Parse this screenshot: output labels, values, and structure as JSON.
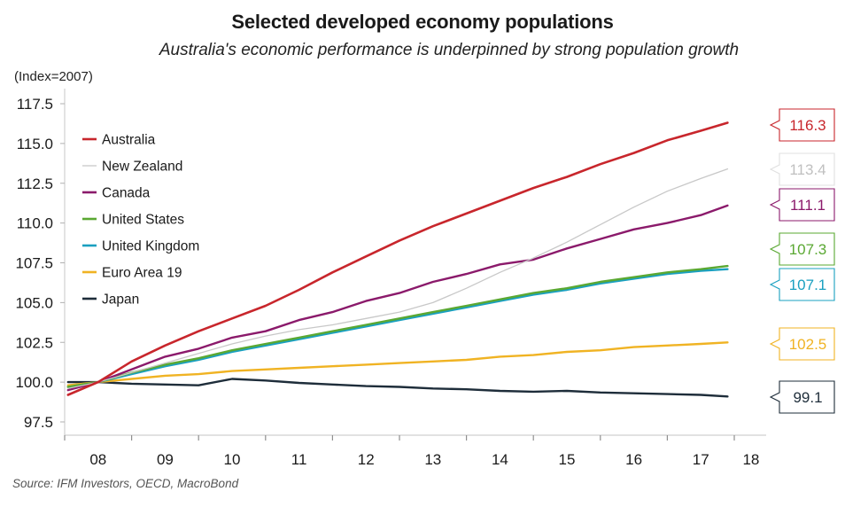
{
  "chart_data": {
    "type": "line",
    "title": "Selected developed economy populations",
    "subtitle": "Australia's economic performance is underpinned by strong population growth",
    "ylabel": "(Index=2007)",
    "xlabel": "",
    "source": "Source: IFM Investors, OECD, MacroBond",
    "ylim": [
      97.5,
      117.5
    ],
    "xlim": [
      2008.0,
      2018.45
    ],
    "yticks": [
      97.5,
      100.0,
      102.5,
      105.0,
      107.5,
      110.0,
      112.5,
      115.0,
      117.5
    ],
    "ytick_labels": [
      "97.5",
      "100.0",
      "102.5",
      "105.0",
      "107.5",
      "110.0",
      "112.5",
      "115.0",
      "117.5"
    ],
    "xtick_positions": [
      2008,
      2009,
      2010,
      2011,
      2012,
      2013,
      2014,
      2015,
      2016,
      2017,
      2018
    ],
    "xcategory_labels": [
      {
        "label": "08",
        "at": 2008.5
      },
      {
        "label": "09",
        "at": 2009.5
      },
      {
        "label": "10",
        "at": 2010.5
      },
      {
        "label": "11",
        "at": 2011.5
      },
      {
        "label": "12",
        "at": 2012.5
      },
      {
        "label": "13",
        "at": 2013.5
      },
      {
        "label": "14",
        "at": 2014.5
      },
      {
        "label": "15",
        "at": 2015.5
      },
      {
        "label": "16",
        "at": 2016.5
      },
      {
        "label": "17",
        "at": 2017.5
      },
      {
        "label": "18",
        "at": 2018.25
      }
    ],
    "grid": false,
    "legend_position": "top-left",
    "x": [
      2008.05,
      2008.5,
      2009.0,
      2009.5,
      2010.0,
      2010.5,
      2011.0,
      2011.5,
      2012.0,
      2012.5,
      2013.0,
      2013.5,
      2014.0,
      2014.5,
      2015.0,
      2015.5,
      2016.0,
      2016.5,
      2017.0,
      2017.5,
      2017.9
    ],
    "series": [
      {
        "name": "Australia",
        "color": "#c8262c",
        "width": 2.6,
        "values": [
          99.2,
          100.0,
          101.3,
          102.3,
          103.2,
          104.0,
          104.8,
          105.8,
          106.9,
          107.9,
          108.9,
          109.8,
          110.6,
          111.4,
          112.2,
          112.9,
          113.7,
          114.4,
          115.2,
          115.8,
          116.3
        ],
        "end_label": "116.3"
      },
      {
        "name": "New Zealand",
        "color": "#c8c8c8",
        "width": 1.3,
        "values": [
          99.6,
          100.0,
          100.6,
          101.2,
          101.8,
          102.4,
          102.9,
          103.3,
          103.6,
          104.0,
          104.4,
          105.0,
          105.9,
          106.9,
          107.8,
          108.8,
          109.9,
          111.0,
          112.0,
          112.8,
          113.4
        ],
        "end_label": "113.4"
      },
      {
        "name": "Canada",
        "color": "#8b1a6b",
        "width": 2.4,
        "values": [
          99.5,
          100.0,
          100.8,
          101.6,
          102.1,
          102.8,
          103.2,
          103.9,
          104.4,
          105.1,
          105.6,
          106.3,
          106.8,
          107.4,
          107.7,
          108.4,
          109.0,
          109.6,
          110.0,
          110.5,
          111.1
        ],
        "end_label": "111.1"
      },
      {
        "name": "United States",
        "color": "#5aa832",
        "width": 2.4,
        "values": [
          99.7,
          100.0,
          100.6,
          101.1,
          101.5,
          102.0,
          102.4,
          102.8,
          103.2,
          103.6,
          104.0,
          104.4,
          104.8,
          105.2,
          105.6,
          105.9,
          106.3,
          106.6,
          106.9,
          107.1,
          107.3
        ],
        "end_label": "107.3"
      },
      {
        "name": "United Kingdom",
        "color": "#1aa0c0",
        "width": 2.4,
        "values": [
          99.7,
          100.0,
          100.5,
          101.0,
          101.4,
          101.9,
          102.3,
          102.7,
          103.1,
          103.5,
          103.9,
          104.3,
          104.7,
          105.1,
          105.5,
          105.8,
          106.2,
          106.5,
          106.8,
          107.0,
          107.1
        ],
        "end_label": "107.1"
      },
      {
        "name": "Euro Area 19",
        "color": "#f0b323",
        "width": 2.4,
        "values": [
          99.8,
          100.0,
          100.2,
          100.4,
          100.5,
          100.7,
          100.8,
          100.9,
          101.0,
          101.1,
          101.2,
          101.3,
          101.4,
          101.6,
          101.7,
          101.9,
          102.0,
          102.2,
          102.3,
          102.4,
          102.5
        ],
        "end_label": "102.5"
      },
      {
        "name": "Japan",
        "color": "#1e2d3a",
        "width": 2.4,
        "values": [
          100.0,
          100.0,
          99.9,
          99.85,
          99.8,
          100.2,
          100.1,
          99.95,
          99.85,
          99.75,
          99.7,
          99.6,
          99.55,
          99.45,
          99.4,
          99.45,
          99.35,
          99.3,
          99.25,
          99.2,
          99.1
        ],
        "end_label": "99.1"
      }
    ]
  }
}
